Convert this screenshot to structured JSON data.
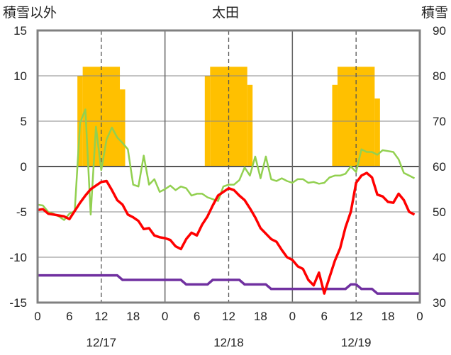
{
  "chart_data": {
    "type": "line",
    "title": "太田",
    "ylabel_left": "積雪以外",
    "ylabel_right": "積雪",
    "ylim_left": [
      -15,
      15
    ],
    "yticks_left": [
      15,
      10,
      5,
      0,
      -5,
      -10,
      -15
    ],
    "ylim_right": [
      30,
      90
    ],
    "yticks_right": [
      90,
      80,
      70,
      60,
      50,
      40,
      30
    ],
    "x_hour_range": [
      0,
      72
    ],
    "xtick_labels": [
      "0",
      "6",
      "12",
      "18",
      "0",
      "6",
      "12",
      "18",
      "0",
      "6",
      "12",
      "18",
      "0"
    ],
    "day_labels": [
      "12/17",
      "12/18",
      "12/19"
    ],
    "colors": {
      "snow": "#FFC000",
      "temperature": "#FF0000",
      "humidity_like": "#92D050",
      "purple": "#7030A0",
      "frame": "#808080"
    },
    "snow_bars": [
      {
        "start": 7.5,
        "end": 8.5,
        "value": 80
      },
      {
        "start": 8.5,
        "end": 15.5,
        "value": 82
      },
      {
        "start": 15.5,
        "end": 16.5,
        "value": 77
      },
      {
        "start": 31.5,
        "end": 32.5,
        "value": 80
      },
      {
        "start": 32.5,
        "end": 39.5,
        "value": 82
      },
      {
        "start": 39.5,
        "end": 40.5,
        "value": 78
      },
      {
        "start": 55.5,
        "end": 56.5,
        "value": 78
      },
      {
        "start": 56.5,
        "end": 63.5,
        "value": 82
      },
      {
        "start": 63.5,
        "end": 64.5,
        "value": 75
      }
    ],
    "series": [
      {
        "key": "temperature",
        "color": "#FF0000",
        "x": [
          0,
          1,
          2,
          3,
          4,
          5,
          6,
          7,
          8,
          9,
          10,
          11,
          12,
          13,
          14,
          15,
          16,
          17,
          18,
          19,
          20,
          21,
          22,
          23,
          24,
          25,
          26,
          27,
          28,
          29,
          30,
          31,
          32,
          33,
          34,
          35,
          36,
          37,
          38,
          39,
          40,
          41,
          42,
          43,
          44,
          45,
          46,
          47,
          48,
          49,
          50,
          51,
          52,
          53,
          54,
          55,
          56,
          57,
          58,
          59,
          60,
          61,
          62,
          63,
          64,
          65,
          66,
          67,
          68,
          69,
          70,
          71
        ],
        "values": [
          -4.8,
          -4.7,
          -5.2,
          -5.3,
          -5.4,
          -5.5,
          -5.8,
          -4.9,
          -4.0,
          -3.2,
          -2.5,
          -2.1,
          -1.7,
          -1.6,
          -2.6,
          -3.7,
          -4.2,
          -5.3,
          -5.6,
          -6.0,
          -6.9,
          -6.8,
          -7.6,
          -7.8,
          -7.9,
          -8.1,
          -8.8,
          -9.1,
          -8.0,
          -7.3,
          -7.6,
          -6.4,
          -5.5,
          -4.3,
          -3.2,
          -2.8,
          -2.4,
          -2.6,
          -3.2,
          -3.7,
          -4.6,
          -5.6,
          -6.8,
          -7.4,
          -8.0,
          -8.3,
          -9.2,
          -10.0,
          -10.3,
          -11.0,
          -11.3,
          -12.5,
          -13.1,
          -11.7,
          -14.0,
          -12.2,
          -10.4,
          -9.0,
          -6.7,
          -5.0,
          -1.8,
          -1.0,
          -0.7,
          -1.2,
          -3.1,
          -3.3,
          -3.9,
          -4.0,
          -3.0,
          -3.7,
          -5.0,
          -5.3
        ]
      },
      {
        "key": "green",
        "color": "#92D050",
        "x": [
          0,
          1,
          2,
          3,
          4,
          5,
          6,
          7,
          8,
          9,
          10,
          11,
          12,
          13,
          14,
          15,
          16,
          17,
          18,
          19,
          20,
          21,
          22,
          23,
          24,
          25,
          26,
          27,
          28,
          29,
          30,
          31,
          32,
          33,
          34,
          35,
          36,
          37,
          38,
          39,
          40,
          41,
          42,
          43,
          44,
          45,
          46,
          47,
          48,
          49,
          50,
          51,
          52,
          53,
          54,
          55,
          56,
          57,
          58,
          59,
          60,
          61,
          62,
          63,
          64,
          65,
          66,
          67,
          68,
          69,
          70,
          71
        ],
        "values": [
          -4.2,
          -4.3,
          -5.0,
          -5.2,
          -5.5,
          -5.9,
          -5.2,
          -4.9,
          4.8,
          6.3,
          -5.3,
          4.4,
          -0.4,
          3.0,
          4.3,
          3.2,
          2.6,
          1.9,
          -2.0,
          -2.2,
          1.2,
          -2.0,
          -1.4,
          -2.8,
          -2.5,
          -2.1,
          -2.6,
          -2.2,
          -2.4,
          -3.2,
          -3.0,
          -3.0,
          -3.4,
          -3.6,
          -3.8,
          -2.2,
          -2.0,
          -2.0,
          -1.5,
          -0.1,
          -1.0,
          1.1,
          -1.3,
          1.1,
          -1.4,
          -1.6,
          -1.3,
          -1.6,
          -1.8,
          -1.4,
          -1.4,
          -1.8,
          -1.7,
          -1.9,
          -1.8,
          -1.2,
          -1.0,
          -1.0,
          -0.8,
          0.0,
          -0.6,
          1.9,
          1.6,
          1.6,
          1.3,
          1.8,
          1.7,
          1.6,
          0.8,
          -0.7,
          -1.0,
          -1.3
        ]
      },
      {
        "key": "purple",
        "color": "#7030A0",
        "x": [
          0,
          15,
          16,
          27,
          28,
          32,
          33,
          38,
          39,
          43,
          44,
          58,
          59,
          60,
          61,
          62,
          63,
          64,
          72
        ],
        "values": [
          -12.0,
          -12.0,
          -12.5,
          -12.5,
          -13.0,
          -13.0,
          -12.5,
          -12.5,
          -13.0,
          -13.0,
          -13.5,
          -13.5,
          -13.0,
          -13.0,
          -13.5,
          -13.5,
          -13.5,
          -14.0,
          -14.0
        ]
      }
    ]
  }
}
